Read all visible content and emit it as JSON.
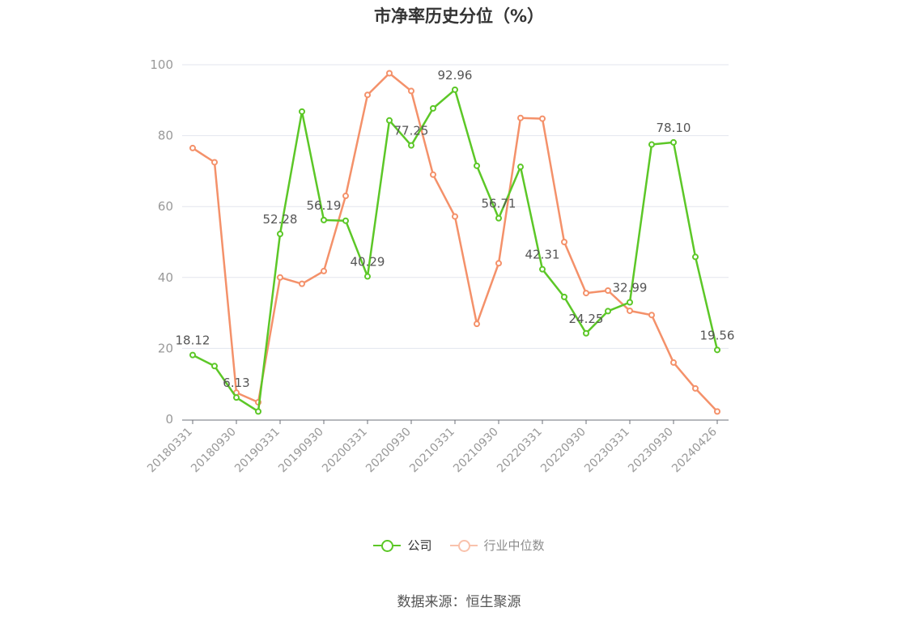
{
  "title": "市净率历史分位（%）",
  "source": "数据来源：恒生聚源",
  "legend": [
    {
      "label": "公司",
      "color": "#5cc727",
      "active": true
    },
    {
      "label": "行业中位数",
      "color": "#f4916a",
      "active": false
    }
  ],
  "chart_data": {
    "type": "line",
    "x": [
      "20180331",
      "20180630",
      "20180930",
      "20181231",
      "20190331",
      "20190630",
      "20190930",
      "20191231",
      "20200331",
      "20200630",
      "20200930",
      "20201231",
      "20210331",
      "20210630",
      "20210930",
      "20211231",
      "20220331",
      "20220630",
      "20220930",
      "20221231",
      "20230331",
      "20230630",
      "20230930",
      "20231231",
      "20240426"
    ],
    "x_tick_labels": [
      "20180331",
      "20180930",
      "20190331",
      "20190930",
      "20200331",
      "20200930",
      "20210331",
      "20210930",
      "20220331",
      "20220930",
      "20230331",
      "20230930",
      "20240426"
    ],
    "ylim": [
      0,
      100
    ],
    "y_ticks": [
      0,
      20,
      40,
      60,
      80,
      100
    ],
    "grid": true,
    "series": [
      {
        "name": "公司",
        "color": "#5cc727",
        "values": [
          18.12,
          15.0,
          6.13,
          2.2,
          52.28,
          86.8,
          56.19,
          56.0,
          40.29,
          84.3,
          77.25,
          87.7,
          92.96,
          71.5,
          56.71,
          71.2,
          42.31,
          34.5,
          24.25,
          30.5,
          32.99,
          77.5,
          78.1,
          45.8,
          19.56
        ],
        "labels": {
          "0": "18.12",
          "2": "6.13",
          "4": "52.28",
          "6": "56.19",
          "8": "40.29",
          "10": "77.25",
          "12": "92.96",
          "14": "56.71",
          "16": "42.31",
          "18": "24.25",
          "20": "32.99",
          "22": "78.10",
          "24": "19.56"
        }
      },
      {
        "name": "行业中位数",
        "color": "#f4916a",
        "values": [
          76.5,
          72.5,
          7.5,
          4.8,
          40.0,
          38.2,
          41.8,
          63.0,
          91.5,
          97.6,
          92.6,
          69.0,
          57.2,
          26.9,
          44.0,
          85.0,
          84.8,
          50.0,
          35.6,
          36.3,
          30.6,
          29.4,
          16.0,
          8.7,
          2.2
        ]
      }
    ]
  }
}
